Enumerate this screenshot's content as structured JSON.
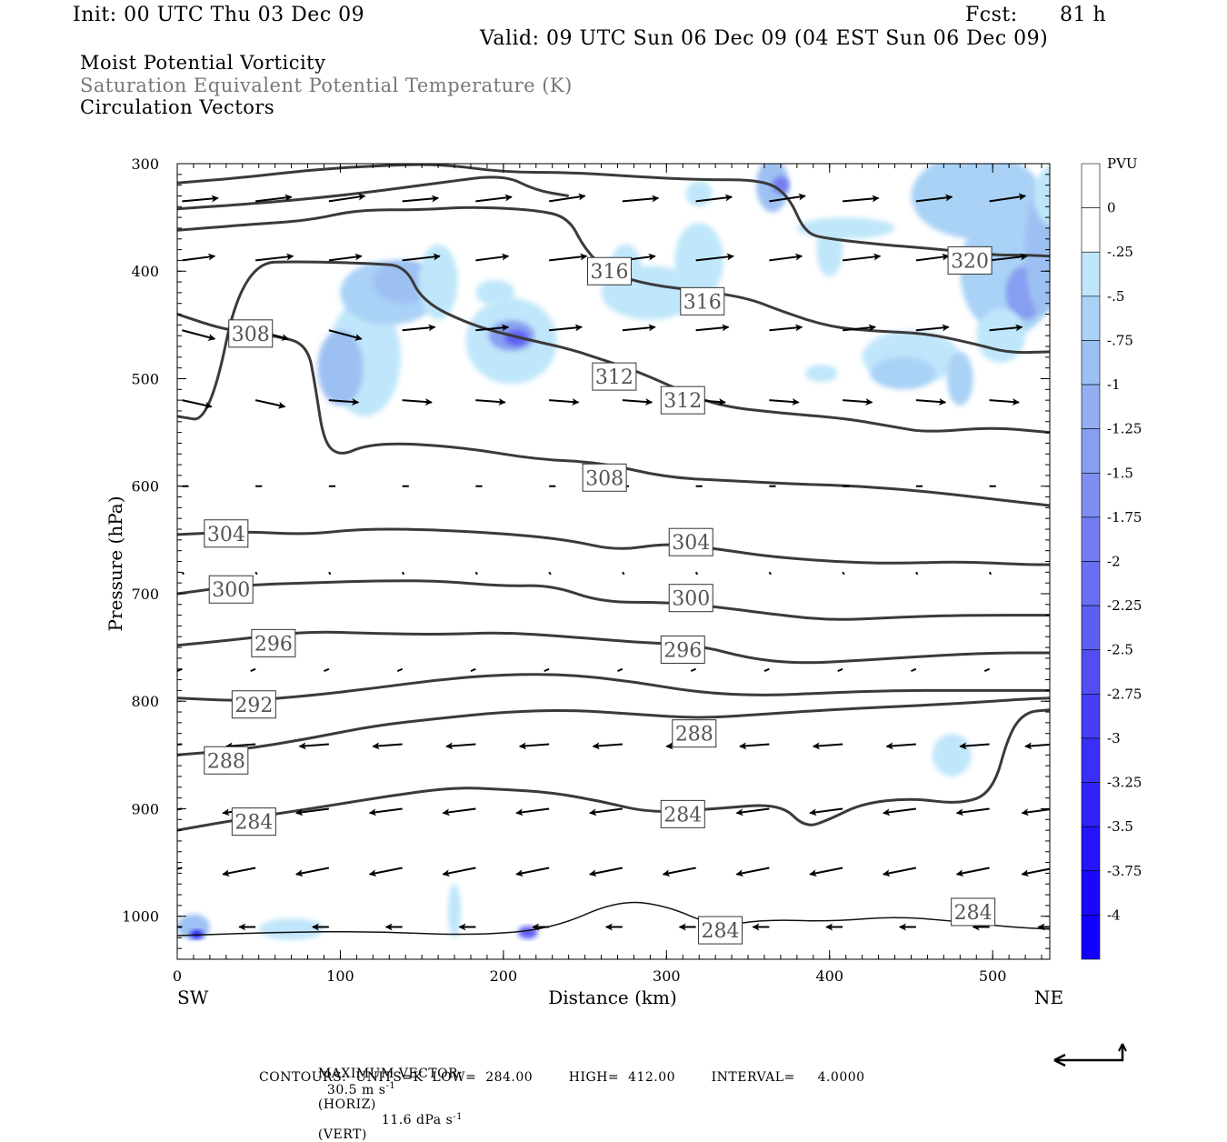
{
  "header": {
    "init": "Init: 00 UTC Thu 03 Dec 09",
    "fcst_label": "Fcst:",
    "fcst_value": "81 h",
    "valid": "Valid: 09 UTC Sun 06 Dec 09 (04 EST Sun 06 Dec 09)"
  },
  "fields": [
    "Moist Potential Vorticity",
    "Saturation Equivalent Potential Temperature (K)",
    "Circulation Vectors"
  ],
  "colors": {
    "contour": "#3a3a3a",
    "vector": "#000000",
    "pv_scale": [
      "#ffffff",
      "#ffffff",
      "#bfe6fa",
      "#a9d2f6",
      "#9dc0f3",
      "#93aff1",
      "#889ef0",
      "#7e8ef1",
      "#737df1",
      "#6a6ef2",
      "#5f5ef3",
      "#534ef4",
      "#463ef5",
      "#3a2ff6",
      "#2e22f8",
      "#2314fa",
      "#1a08fc",
      "#1200ff"
    ]
  },
  "chart_data": {
    "type": "cross-section",
    "xlabel": "Distance (km)",
    "ylabel": "Pressure (hPa)",
    "xlim": [
      0,
      535
    ],
    "ylim": [
      300,
      1040
    ],
    "x_ticks": [
      0,
      100,
      200,
      300,
      400,
      500
    ],
    "y_ticks": [
      300,
      400,
      500,
      600,
      700,
      800,
      900,
      1000
    ],
    "x_end_labels": {
      "left": "SW",
      "right": "NE"
    },
    "colorbar": {
      "title": "PVU",
      "labels": [
        "0",
        "-.25",
        "-.5",
        "-.75",
        "-1",
        "-1.25",
        "-1.5",
        "-1.75",
        "-2",
        "-2.25",
        "-2.5",
        "-2.75",
        "-3",
        "-3.25",
        "-3.5",
        "-3.75",
        "-4"
      ]
    },
    "theta_e_contours": [
      {
        "value": 284,
        "label": "284",
        "points": [
          [
            0,
            920
          ],
          [
            30,
            912
          ],
          [
            60,
            905
          ],
          [
            90,
            898
          ],
          [
            130,
            888
          ],
          [
            170,
            880
          ],
          [
            200,
            882
          ],
          [
            230,
            885
          ],
          [
            260,
            893
          ],
          [
            290,
            904
          ],
          [
            330,
            900
          ],
          [
            370,
            895
          ],
          [
            385,
            918
          ],
          [
            400,
            910
          ],
          [
            420,
            895
          ],
          [
            450,
            890
          ],
          [
            480,
            896
          ],
          [
            500,
            885
          ],
          [
            510,
            830
          ],
          [
            520,
            810
          ],
          [
            535,
            808
          ]
        ]
      },
      {
        "value": 288,
        "label": "288",
        "points": [
          [
            0,
            850
          ],
          [
            40,
            845
          ],
          [
            80,
            835
          ],
          [
            120,
            823
          ],
          [
            160,
            816
          ],
          [
            200,
            810
          ],
          [
            240,
            808
          ],
          [
            280,
            812
          ],
          [
            320,
            816
          ],
          [
            360,
            812
          ],
          [
            400,
            808
          ],
          [
            440,
            805
          ],
          [
            480,
            802
          ],
          [
            520,
            798
          ],
          [
            535,
            797
          ]
        ]
      },
      {
        "value": 292,
        "label": "292",
        "points": [
          [
            0,
            797
          ],
          [
            40,
            800
          ],
          [
            80,
            795
          ],
          [
            120,
            788
          ],
          [
            160,
            780
          ],
          [
            200,
            775
          ],
          [
            240,
            775
          ],
          [
            280,
            782
          ],
          [
            320,
            792
          ],
          [
            360,
            795
          ],
          [
            400,
            792
          ],
          [
            440,
            790
          ],
          [
            480,
            790
          ],
          [
            535,
            790
          ]
        ]
      },
      {
        "value": 296,
        "label": "296",
        "points": [
          [
            0,
            748
          ],
          [
            40,
            742
          ],
          [
            80,
            735
          ],
          [
            120,
            737
          ],
          [
            160,
            738
          ],
          [
            200,
            736
          ],
          [
            240,
            740
          ],
          [
            280,
            745
          ],
          [
            320,
            748
          ],
          [
            350,
            760
          ],
          [
            380,
            765
          ],
          [
            420,
            762
          ],
          [
            460,
            758
          ],
          [
            500,
            755
          ],
          [
            535,
            755
          ]
        ]
      },
      {
        "value": 300,
        "label": "300",
        "points": [
          [
            0,
            700
          ],
          [
            40,
            692
          ],
          [
            80,
            690
          ],
          [
            120,
            688
          ],
          [
            160,
            688
          ],
          [
            200,
            693
          ],
          [
            230,
            692
          ],
          [
            260,
            708
          ],
          [
            300,
            708
          ],
          [
            330,
            712
          ],
          [
            360,
            718
          ],
          [
            400,
            725
          ],
          [
            440,
            722
          ],
          [
            480,
            720
          ],
          [
            535,
            720
          ]
        ]
      },
      {
        "value": 304,
        "label": "304",
        "points": [
          [
            0,
            645
          ],
          [
            40,
            642
          ],
          [
            80,
            645
          ],
          [
            110,
            640
          ],
          [
            150,
            640
          ],
          [
            200,
            644
          ],
          [
            240,
            650
          ],
          [
            270,
            660
          ],
          [
            300,
            653
          ],
          [
            330,
            658
          ],
          [
            360,
            665
          ],
          [
            400,
            670
          ],
          [
            440,
            672
          ],
          [
            480,
            670
          ],
          [
            520,
            673
          ],
          [
            535,
            673
          ]
        ]
      },
      {
        "value": 308,
        "label": "308",
        "points": [
          [
            0,
            440
          ],
          [
            30,
            455
          ],
          [
            60,
            460
          ],
          [
            80,
            468
          ],
          [
            85,
            510
          ],
          [
            90,
            560
          ],
          [
            100,
            572
          ],
          [
            115,
            562
          ],
          [
            140,
            560
          ],
          [
            180,
            565
          ],
          [
            220,
            575
          ],
          [
            260,
            578
          ],
          [
            300,
            592
          ],
          [
            340,
            595
          ],
          [
            380,
            598
          ],
          [
            420,
            600
          ],
          [
            460,
            605
          ],
          [
            500,
            612
          ],
          [
            535,
            618
          ]
        ]
      },
      {
        "value": 312,
        "label": "312",
        "points": [
          [
            0,
            535
          ],
          [
            20,
            540
          ],
          [
            40,
            392
          ],
          [
            80,
            391
          ],
          [
            120,
            393
          ],
          [
            140,
            395
          ],
          [
            150,
            428
          ],
          [
            180,
            450
          ],
          [
            210,
            462
          ],
          [
            240,
            472
          ],
          [
            260,
            482
          ],
          [
            280,
            492
          ],
          [
            300,
            505
          ],
          [
            330,
            525
          ],
          [
            370,
            532
          ],
          [
            410,
            537
          ],
          [
            440,
            545
          ],
          [
            460,
            550
          ],
          [
            500,
            545
          ],
          [
            535,
            550
          ]
        ]
      },
      {
        "value": 316,
        "label": "316",
        "points": [
          [
            0,
            362
          ],
          [
            40,
            357
          ],
          [
            80,
            353
          ],
          [
            110,
            343
          ],
          [
            150,
            343
          ],
          [
            180,
            340
          ],
          [
            220,
            343
          ],
          [
            240,
            350
          ],
          [
            250,
            380
          ],
          [
            265,
            402
          ],
          [
            290,
            413
          ],
          [
            320,
            418
          ],
          [
            350,
            425
          ],
          [
            370,
            437
          ],
          [
            400,
            452
          ],
          [
            430,
            456
          ],
          [
            460,
            458
          ],
          [
            490,
            468
          ],
          [
            510,
            476
          ],
          [
            535,
            475
          ]
        ]
      },
      {
        "value": 320,
        "label": "320",
        "points": [
          [
            0,
            318
          ],
          [
            40,
            313
          ],
          [
            80,
            306
          ],
          [
            120,
            302
          ],
          [
            160,
            300
          ],
          [
            200,
            308
          ],
          [
            240,
            308
          ],
          [
            280,
            312
          ],
          [
            320,
            315
          ],
          [
            360,
            315
          ],
          [
            375,
            330
          ],
          [
            385,
            365
          ],
          [
            400,
            370
          ],
          [
            430,
            375
          ],
          [
            470,
            380
          ],
          [
            500,
            385
          ],
          [
            520,
            385
          ],
          [
            535,
            386
          ]
        ]
      },
      {
        "value": 324,
        "label": "",
        "points": [
          [
            0,
            342
          ],
          [
            40,
            338
          ],
          [
            100,
            330
          ],
          [
            160,
            318
          ],
          [
            200,
            310
          ],
          [
            220,
            325
          ],
          [
            240,
            330
          ]
        ]
      },
      {
        "value": 284,
        "label": "284",
        "points": [
          [
            0,
            1018
          ],
          [
            60,
            1015
          ],
          [
            120,
            1014
          ],
          [
            180,
            1018
          ],
          [
            230,
            1012
          ],
          [
            270,
            985
          ],
          [
            300,
            990
          ],
          [
            330,
            1010
          ],
          [
            360,
            1003
          ],
          [
            400,
            1005
          ],
          [
            440,
            1000
          ],
          [
            480,
            1005
          ],
          [
            510,
            1010
          ],
          [
            535,
            1012
          ]
        ]
      }
    ]
  },
  "footer": {
    "max_vector_label": "MAXIMUM VECTOR:",
    "max_horiz": "30.5 m s",
    "horiz_exp": "-1",
    "horiz_tag": "(HORIZ)",
    "max_vert": "11.6 dPa s",
    "vert_exp": "-1",
    "vert_tag": "(VERT)",
    "contours": "CONTOURS:  UNITS=K  LOW=  284.00        HIGH=  412.00        INTERVAL=     4.0000"
  }
}
